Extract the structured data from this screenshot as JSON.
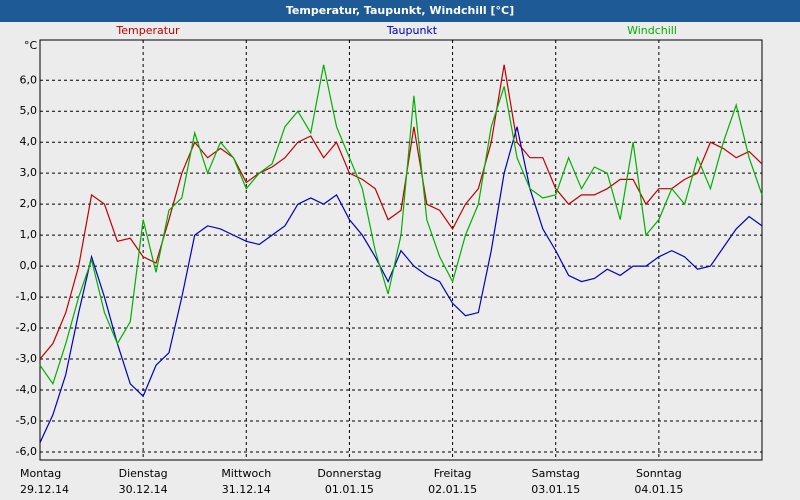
{
  "chart_data": {
    "type": "line",
    "title": "Temperatur, Taupunkt, Windchill [°C]",
    "y_label": "°C",
    "x": [
      0,
      3,
      6,
      9,
      12,
      15,
      18,
      21,
      24,
      27,
      30,
      33,
      36,
      39,
      42,
      45,
      48,
      51,
      54,
      57,
      60,
      63,
      66,
      69,
      72,
      75,
      78,
      81,
      84,
      87,
      90,
      93,
      96,
      99,
      102,
      105,
      108,
      111,
      114,
      117,
      120,
      123,
      126,
      129,
      132,
      135,
      138,
      141,
      144,
      147,
      150,
      153,
      156,
      159,
      162,
      165,
      168
    ],
    "xlim": [
      0,
      168
    ],
    "xticks": [
      {
        "value": 0,
        "label": "Montag"
      },
      {
        "value": 24,
        "label": "Dienstag"
      },
      {
        "value": 48,
        "label": "Mittwoch"
      },
      {
        "value": 72,
        "label": "Donnerstag"
      },
      {
        "value": 96,
        "label": "Freitag"
      },
      {
        "value": 120,
        "label": "Samstag"
      },
      {
        "value": 144,
        "label": "Sonntag"
      }
    ],
    "xtick_dates": [
      "29.12.14",
      "30.12.14",
      "31.12.14",
      "01.01.15",
      "02.01.15",
      "03.01.15",
      "04.01.15"
    ],
    "ylim": [
      -6.26,
      7.3
    ],
    "yticks": [
      {
        "value": -6,
        "label": "-6,0"
      },
      {
        "value": -5,
        "label": "-5,0"
      },
      {
        "value": -4,
        "label": "-4,0"
      },
      {
        "value": -3,
        "label": "-3,0"
      },
      {
        "value": -2,
        "label": "-2,0"
      },
      {
        "value": -1,
        "label": "-1,0"
      },
      {
        "value": 0,
        "label": "0,0"
      },
      {
        "value": 1,
        "label": "1,0"
      },
      {
        "value": 2,
        "label": "2,0"
      },
      {
        "value": 3,
        "label": "3,0"
      },
      {
        "value": 4,
        "label": "4,0"
      },
      {
        "value": 5,
        "label": "5,0"
      },
      {
        "value": 6,
        "label": "6,0"
      }
    ],
    "grid": true,
    "series": [
      {
        "name": "Temperatur",
        "color": "#c00000",
        "values": [
          -3.0,
          -2.5,
          -1.5,
          0.0,
          2.3,
          2.0,
          0.8,
          0.9,
          0.3,
          0.1,
          1.5,
          3.0,
          4.0,
          3.5,
          3.8,
          3.5,
          2.7,
          3.0,
          3.2,
          3.5,
          4.0,
          4.2,
          3.5,
          4.0,
          3.0,
          2.8,
          2.5,
          1.5,
          1.8,
          4.5,
          2.0,
          1.8,
          1.2,
          2.0,
          2.5,
          4.0,
          6.5,
          4.0,
          3.5,
          3.5,
          2.5,
          2.0,
          2.3,
          2.3,
          2.5,
          2.8,
          2.8,
          2.0,
          2.5,
          2.5,
          2.8,
          3.0,
          4.0,
          3.8,
          3.5,
          3.7,
          3.3
        ]
      },
      {
        "name": "Taupunkt",
        "color": "#0000c0",
        "values": [
          -5.7,
          -4.8,
          -3.5,
          -1.5,
          0.3,
          -1.0,
          -2.5,
          -3.8,
          -4.2,
          -3.2,
          -2.8,
          -1.0,
          1.0,
          1.3,
          1.2,
          1.0,
          0.8,
          0.7,
          1.0,
          1.3,
          2.0,
          2.2,
          2.0,
          2.3,
          1.5,
          1.0,
          0.3,
          -0.5,
          0.5,
          0.0,
          -0.3,
          -0.5,
          -1.2,
          -1.6,
          -1.5,
          0.5,
          3.0,
          4.5,
          2.5,
          1.2,
          0.5,
          -0.3,
          -0.5,
          -0.4,
          -0.1,
          -0.3,
          0.0,
          0.0,
          0.3,
          0.5,
          0.3,
          -0.1,
          0.0,
          0.6,
          1.2,
          1.6,
          1.3
        ]
      },
      {
        "name": "Windchill",
        "color": "#00b000",
        "values": [
          -3.2,
          -3.8,
          -2.5,
          -1.0,
          0.2,
          -1.5,
          -2.5,
          -1.8,
          1.5,
          -0.2,
          1.8,
          2.2,
          4.3,
          3.0,
          4.0,
          3.5,
          2.5,
          3.0,
          3.3,
          4.5,
          5.0,
          4.3,
          6.5,
          4.5,
          3.5,
          2.5,
          0.5,
          -0.9,
          1.0,
          5.5,
          1.5,
          0.3,
          -0.5,
          1.0,
          2.0,
          4.5,
          5.8,
          3.5,
          2.5,
          2.2,
          2.3,
          3.5,
          2.5,
          3.2,
          3.0,
          1.5,
          4.0,
          1.0,
          1.5,
          2.5,
          2.0,
          3.5,
          2.5,
          4.0,
          5.2,
          3.5,
          2.3
        ]
      }
    ]
  }
}
